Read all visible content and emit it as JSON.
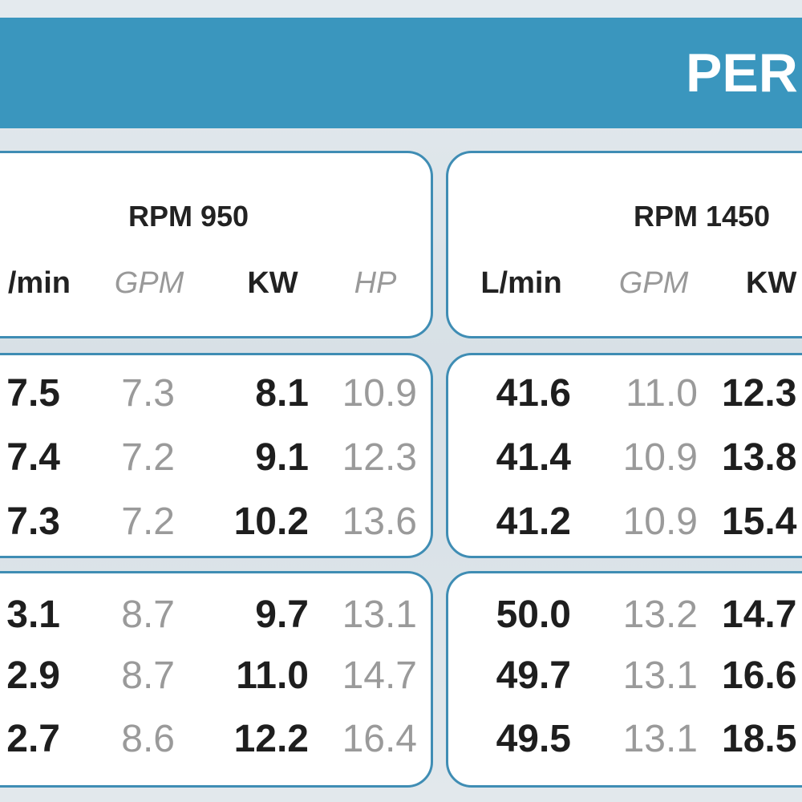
{
  "header": {
    "title": "PER"
  },
  "sections": [
    {
      "rpm": "RPM 950",
      "columns": [
        "/min",
        "GPM",
        "KW",
        "HP"
      ],
      "rows": [
        [
          "7.5",
          "7.3",
          "8.1",
          "10.9"
        ],
        [
          "7.4",
          "7.2",
          "9.1",
          "12.3"
        ],
        [
          "7.3",
          "7.2",
          "10.2",
          "13.6"
        ],
        [
          "3.1",
          "8.7",
          "9.7",
          "13.1"
        ],
        [
          "2.9",
          "8.7",
          "11.0",
          "14.7"
        ],
        [
          "2.7",
          "8.6",
          "12.2",
          "16.4"
        ]
      ]
    },
    {
      "rpm": "RPM 1450",
      "columns": [
        "L/min",
        "GPM",
        "KW"
      ],
      "rows": [
        [
          "41.6",
          "11.0",
          "12.3"
        ],
        [
          "41.4",
          "10.9",
          "13.8"
        ],
        [
          "41.2",
          "10.9",
          "15.4"
        ],
        [
          "50.0",
          "13.2",
          "14.7"
        ],
        [
          "49.7",
          "13.1",
          "16.6"
        ],
        [
          "49.5",
          "13.1",
          "18.5"
        ]
      ]
    }
  ]
}
